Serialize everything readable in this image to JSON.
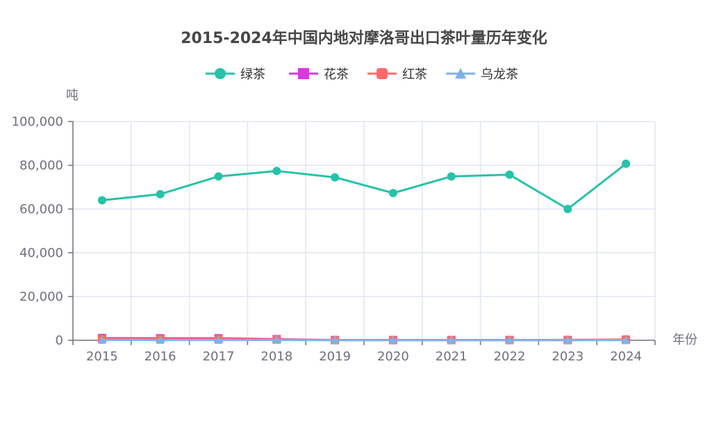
{
  "chart_data": {
    "type": "line",
    "title": "2015-2024年中国内地对摩洛哥出口茶叶量历年变化",
    "xlabel": "年份",
    "ylabel": "吨",
    "categories": [
      "2015",
      "2016",
      "2017",
      "2018",
      "2019",
      "2020",
      "2021",
      "2022",
      "2023",
      "2024"
    ],
    "ylim": [
      0,
      100000
    ],
    "yticks": [
      0,
      20000,
      40000,
      60000,
      80000,
      100000
    ],
    "ytick_labels": [
      "0",
      "20,000",
      "40,000",
      "60,000",
      "80,000",
      "100,000"
    ],
    "grid": true,
    "legend_position": "top-center",
    "series": [
      {
        "name": "绿茶",
        "color": "#26c2a9",
        "marker": "circle",
        "values": [
          64000,
          66800,
          74900,
          77400,
          74500,
          67300,
          74900,
          75700,
          60000,
          80700
        ]
      },
      {
        "name": "花茶",
        "color": "#d63bdc",
        "marker": "square",
        "values": [
          1000,
          900,
          900,
          500,
          100,
          100,
          100,
          100,
          100,
          200
        ]
      },
      {
        "name": "红茶",
        "color": "#ff6b6b",
        "marker": "roundrect",
        "values": [
          600,
          500,
          500,
          300,
          100,
          100,
          100,
          100,
          200,
          400
        ]
      },
      {
        "name": "乌龙茶",
        "color": "#7fb3e6",
        "marker": "triangle",
        "values": [
          100,
          100,
          100,
          100,
          50,
          50,
          50,
          50,
          50,
          100
        ]
      }
    ]
  }
}
